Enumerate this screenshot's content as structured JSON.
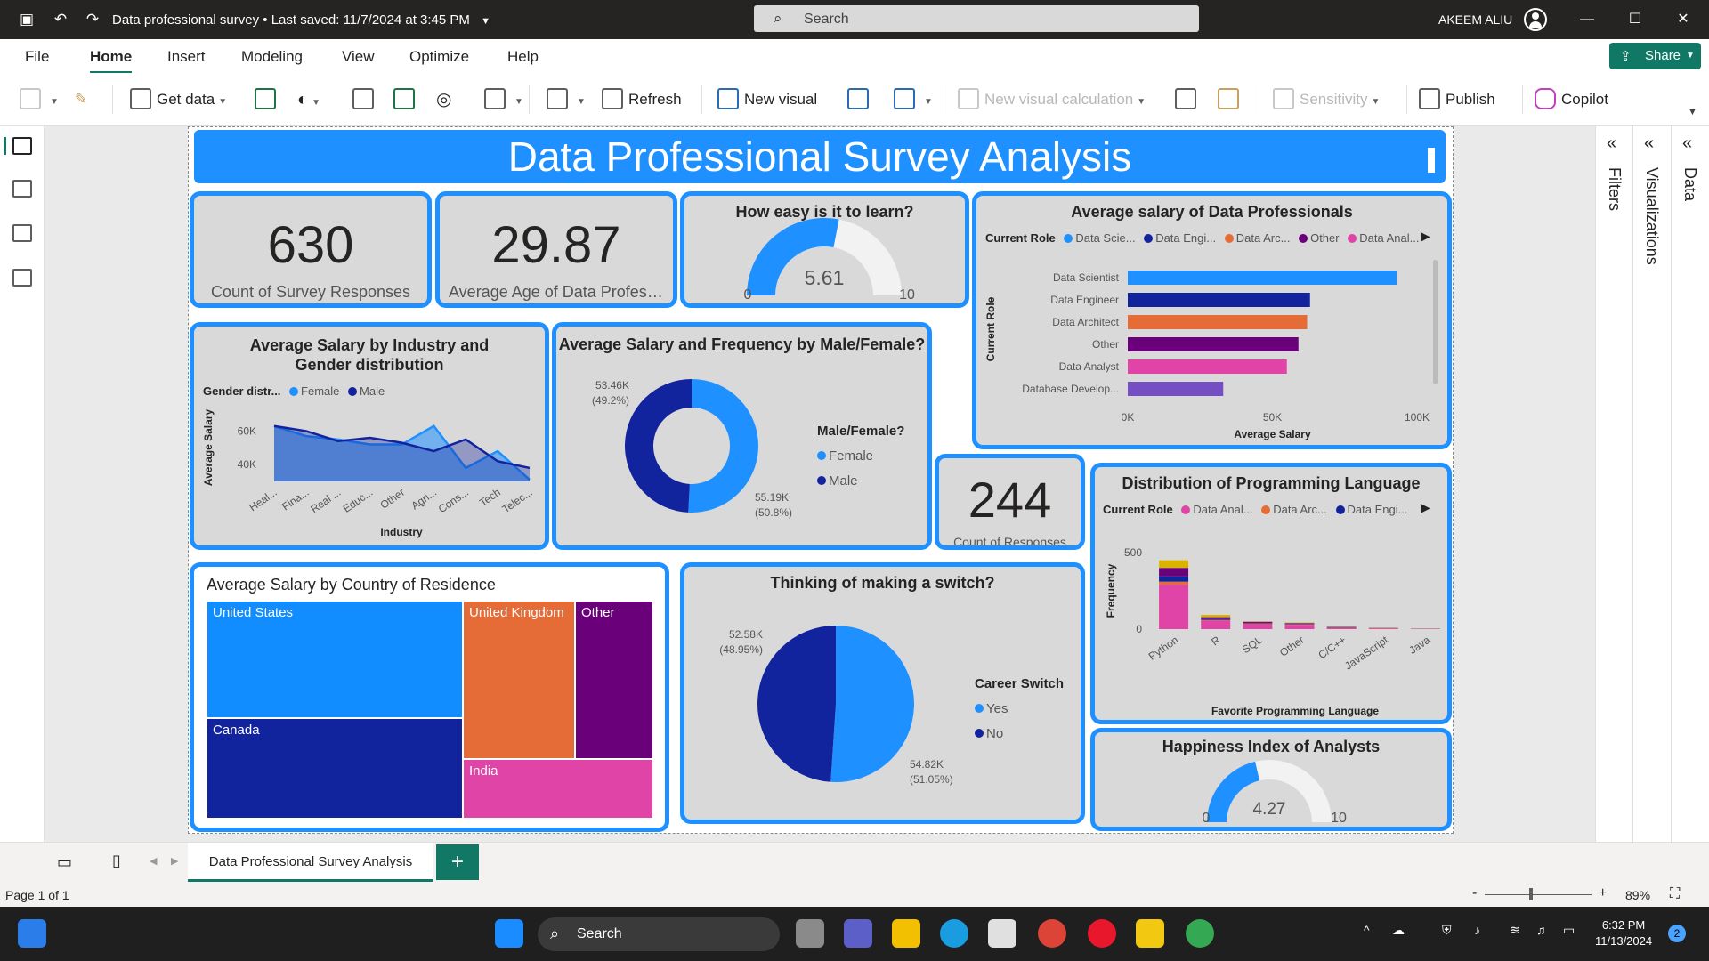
{
  "titlebar": {
    "doc_title": "Data professional survey",
    "saved": "Last saved: 11/7/2024 at 3:45 PM",
    "search_placeholder": "Search",
    "user": "AKEEM ALIU"
  },
  "menu": {
    "items": [
      "File",
      "Home",
      "Insert",
      "Modeling",
      "View",
      "Optimize",
      "Help"
    ],
    "active": "Home",
    "share": "Share"
  },
  "ribbon": {
    "get_data": "Get data",
    "refresh": "Refresh",
    "new_visual": "New visual",
    "new_visual_calc": "New visual calculation",
    "sensitivity": "Sensitivity",
    "publish": "Publish",
    "copilot": "Copilot"
  },
  "panes": {
    "filters": "Filters",
    "visualizations": "Visualizations",
    "data": "Data"
  },
  "report": {
    "banner": "Data Professional Survey Analysis",
    "kpi_responses": {
      "value": "630",
      "label": "Count of Survey Responses"
    },
    "kpi_age": {
      "value": "29.87",
      "label": "Average Age of Data Professi..."
    },
    "kpi_country": {
      "value": "244",
      "label": "Count of Responses"
    },
    "colors": {
      "accent": "#1e90ff",
      "navy": "#12239e",
      "orange": "#e66c37",
      "purple": "#6b007b",
      "pink": "#e044a7",
      "violet": "#744ec2",
      "gold": "#d9b300"
    }
  },
  "gauge_learn": {
    "title": "How easy is it to learn?",
    "value": 5.61,
    "value_text": "5.61",
    "min": "0",
    "max": "10"
  },
  "gauge_happy": {
    "title": "Happiness Index of Analysts",
    "value": 4.27,
    "value_text": "4.27",
    "min": "0",
    "max": "10"
  },
  "salary_role": {
    "title": "Average salary of Data Professionals",
    "legend_title": "Current Role",
    "legend": [
      "Data Scie...",
      "Data Engi...",
      "Data Arc...",
      "Other",
      "Data Anal..."
    ],
    "chart_data": {
      "type": "bar",
      "categories": [
        "Data Scientist",
        "Data Engineer",
        "Data Architect",
        "Other",
        "Data Analyst",
        "Database Develop..."
      ],
      "values": [
        93000,
        63000,
        62000,
        59000,
        55000,
        33000
      ],
      "xlabel": "Average Salary",
      "ylabel": "Current Role",
      "xlim": [
        0,
        100000
      ],
      "xticks": [
        "0K",
        "50K",
        "100K"
      ]
    }
  },
  "salary_industry": {
    "title": "Average Salary by Industry and Gender distribution",
    "legend_title": "Gender distr...",
    "legend": [
      "Female",
      "Male"
    ],
    "chart_data": {
      "type": "area",
      "categories": [
        "Heal...",
        "Fina...",
        "Real ...",
        "Educ...",
        "Other",
        "Agri...",
        "Cons...",
        "Tech",
        "Telec..."
      ],
      "series": [
        {
          "name": "Female",
          "values": [
            63000,
            57000,
            55000,
            52000,
            52000,
            63000,
            38000,
            48000,
            31000
          ]
        },
        {
          "name": "Male",
          "values": [
            63000,
            60000,
            54000,
            56000,
            53000,
            48000,
            55000,
            42000,
            38000
          ]
        }
      ],
      "xlabel": "Industry",
      "ylabel": "Average Salary",
      "yticks": [
        "60K",
        "40K"
      ]
    }
  },
  "salary_gender": {
    "title": "Average Salary and Frequency by Male/Female?",
    "legend_title": "Male/Female?",
    "legend": [
      "Female",
      "Male"
    ],
    "chart_data": {
      "type": "pie",
      "labels": [
        "Female",
        "Male"
      ],
      "values": [
        55190,
        53460
      ],
      "value_labels": [
        "55.19K",
        "53.46K"
      ],
      "pct_labels": [
        "(50.8%)",
        "(49.2%)"
      ]
    }
  },
  "salary_country": {
    "title": "Average Salary by Country of Residence",
    "chart_data": {
      "type": "heatmap",
      "labels": [
        "United States",
        "Canada",
        "United Kingdom",
        "Other",
        "India"
      ]
    }
  },
  "career_switch": {
    "title": "Thinking of making a switch?",
    "legend_title": "Career Switch",
    "legend": [
      "Yes",
      "No"
    ],
    "chart_data": {
      "type": "pie",
      "labels": [
        "Yes",
        "No"
      ],
      "values": [
        54820,
        52580
      ],
      "value_labels": [
        "54.82K",
        "52.58K"
      ],
      "pct_labels": [
        "(51.05%)",
        "(48.95%)"
      ]
    }
  },
  "prog_lang": {
    "title": "Distribution of Programming Language",
    "legend_title": "Current Role",
    "legend": [
      "Data Anal...",
      "Data Arc...",
      "Data Engi..."
    ],
    "chart_data": {
      "type": "bar",
      "categories": [
        "Python",
        "R",
        "SQL",
        "Other",
        "C/C++",
        "JavaScript",
        "Java"
      ],
      "series": [
        {
          "name": "Data Analyst",
          "values": [
            290,
            55,
            35,
            28,
            8,
            5,
            2
          ]
        },
        {
          "name": "Data Architect",
          "values": [
            20,
            5,
            3,
            3,
            1,
            1,
            0
          ]
        },
        {
          "name": "Data Engineer",
          "values": [
            35,
            8,
            3,
            3,
            2,
            1,
            0
          ]
        },
        {
          "name": "Other",
          "values": [
            55,
            10,
            7,
            5,
            3,
            1,
            1
          ]
        },
        {
          "name": "Data Scientist",
          "values": [
            50,
            15,
            3,
            4,
            2,
            1,
            1
          ]
        }
      ],
      "xlabel": "Favorite Programming Language",
      "ylabel": "Frequency",
      "ylim": [
        0,
        500
      ],
      "yticks": [
        "500",
        "0"
      ]
    }
  },
  "tabs": {
    "page": "Data Professional Survey Analysis",
    "add": "+"
  },
  "status": {
    "page": "Page 1 of 1",
    "zoom": "89%"
  },
  "taskbar": {
    "search": "Search",
    "time": "6:32 PM",
    "date": "11/13/2024",
    "badge": "2"
  }
}
